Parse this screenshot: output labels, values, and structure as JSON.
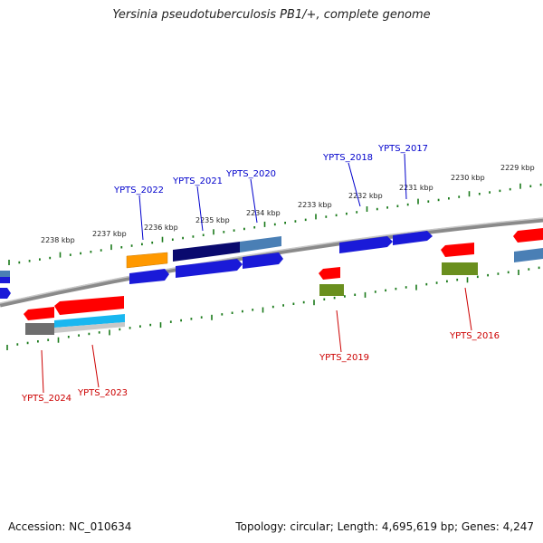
{
  "title": "Yersinia pseudotuberculosis PB1/+, complete genome",
  "footer": {
    "accession": "Accession: NC_010634",
    "summary": "Topology: circular; Length: 4,695,619 bp; Genes: 4,247"
  },
  "colors": {
    "forward_label": "#0000cc",
    "reverse_label": "#cc0000",
    "tick": "#1a7a1a",
    "backbone": "#7a7a7a"
  },
  "scale_labels": [
    "2229 kbp",
    "2230 kbp",
    "2231 kbp",
    "2232 kbp",
    "2233 kbp",
    "2234 kbp",
    "2235 kbp",
    "2236 kbp",
    "2237 kbp",
    "2238 kbp"
  ],
  "gene_labels": {
    "YPTS_2017": "YPTS_2017",
    "YPTS_2018": "YPTS_2018",
    "YPTS_2020": "YPTS_2020",
    "YPTS_2021": "YPTS_2021",
    "YPTS_2022": "YPTS_2022",
    "YPTS_2016": "YPTS_2016",
    "YPTS_2019": "YPTS_2019",
    "YPTS_2023": "YPTS_2023",
    "YPTS_2024": "YPTS_2024"
  }
}
